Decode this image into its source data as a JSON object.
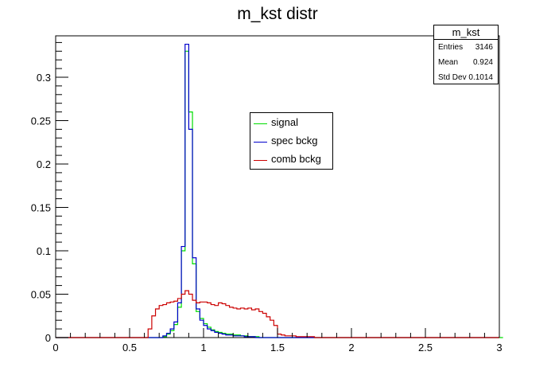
{
  "title": "m_kst distr",
  "stats": {
    "name": "m_kst",
    "rows": [
      {
        "label": "Entries",
        "value": "3146"
      },
      {
        "label": "Mean",
        "value": "0.924"
      },
      {
        "label": "Std Dev",
        "value": "0.1014"
      }
    ]
  },
  "legend": [
    {
      "label": "signal",
      "color": "#00dd00"
    },
    {
      "label": "spec bckg",
      "color": "#0000cc"
    },
    {
      "label": "comb bckg",
      "color": "#cc0000"
    }
  ],
  "chart_data": {
    "type": "histogram",
    "title": "m_kst distr",
    "xlim": [
      0,
      3
    ],
    "ylim": [
      0,
      0.34
    ],
    "x_ticks": [
      "0",
      "0.5",
      "1",
      "1.5",
      "2",
      "2.5",
      "3"
    ],
    "y_ticks": [
      "0",
      "0.05",
      "0.1",
      "0.15",
      "0.2",
      "0.25",
      "0.3"
    ],
    "bin_edges_start": 0,
    "bin_width": 0.025,
    "grid": false,
    "legend_position": "center",
    "series": [
      {
        "name": "signal",
        "color": "#00dd00",
        "values": [
          0,
          0,
          0,
          0,
          0,
          0,
          0,
          0,
          0,
          0,
          0,
          0,
          0,
          0,
          0,
          0,
          0,
          0,
          0,
          0,
          0,
          0,
          0,
          0,
          0,
          0,
          0,
          0,
          0,
          0.001,
          0.004,
          0.008,
          0.015,
          0.035,
          0.1,
          0.33,
          0.26,
          0.085,
          0.03,
          0.022,
          0.016,
          0.012,
          0.009,
          0.007,
          0.006,
          0.005,
          0.004,
          0.004,
          0.003,
          0.003,
          0.002,
          0.002,
          0.001,
          0.001,
          0.001,
          0,
          0,
          0,
          0,
          0,
          0,
          0,
          0,
          0,
          0,
          0,
          0,
          0,
          0,
          0,
          0,
          0,
          0,
          0,
          0,
          0,
          0,
          0,
          0,
          0,
          0,
          0,
          0,
          0,
          0,
          0,
          0,
          0,
          0,
          0,
          0,
          0,
          0,
          0,
          0,
          0,
          0,
          0,
          0,
          0,
          0,
          0,
          0,
          0,
          0,
          0,
          0,
          0,
          0,
          0,
          0,
          0,
          0,
          0,
          0,
          0,
          0,
          0,
          0,
          0,
          0
        ]
      },
      {
        "name": "spec bckg",
        "color": "#0000cc",
        "values": [
          0,
          0,
          0,
          0,
          0,
          0,
          0,
          0,
          0,
          0,
          0,
          0,
          0,
          0,
          0,
          0,
          0,
          0,
          0,
          0,
          0,
          0,
          0,
          0,
          0,
          0,
          0,
          0,
          0,
          0.002,
          0.005,
          0.01,
          0.018,
          0.04,
          0.105,
          0.338,
          0.24,
          0.092,
          0.033,
          0.02,
          0.014,
          0.01,
          0.008,
          0.006,
          0.005,
          0.004,
          0.003,
          0.003,
          0.002,
          0.002,
          0.002,
          0.001,
          0.001,
          0.001,
          0,
          0,
          0,
          0,
          0,
          0,
          0,
          0,
          0,
          0,
          0,
          0,
          0,
          0,
          0,
          0,
          0,
          0,
          0,
          0,
          0,
          0,
          0,
          0,
          0,
          0,
          0,
          0,
          0,
          0,
          0,
          0,
          0,
          0,
          0,
          0,
          0,
          0,
          0,
          0,
          0,
          0,
          0,
          0,
          0,
          0,
          0,
          0,
          0,
          0,
          0,
          0,
          0,
          0,
          0,
          0,
          0,
          0,
          0,
          0,
          0,
          0,
          0,
          0,
          0,
          0
        ]
      },
      {
        "name": "comb bckg",
        "color": "#cc0000",
        "values": [
          0,
          0,
          0,
          0,
          0,
          0,
          0,
          0,
          0,
          0,
          0,
          0,
          0,
          0,
          0,
          0,
          0,
          0,
          0,
          0,
          0,
          0,
          0,
          0,
          0,
          0.01,
          0.025,
          0.033,
          0.037,
          0.038,
          0.04,
          0.041,
          0.042,
          0.045,
          0.05,
          0.054,
          0.05,
          0.043,
          0.04,
          0.041,
          0.041,
          0.04,
          0.038,
          0.037,
          0.04,
          0.039,
          0.037,
          0.035,
          0.034,
          0.033,
          0.034,
          0.033,
          0.034,
          0.032,
          0.033,
          0.03,
          0.028,
          0.024,
          0.02,
          0.014,
          0.004,
          0.003,
          0.002,
          0.002,
          0.002,
          0.001,
          0.001,
          0.001,
          0.001,
          0.001,
          0,
          0,
          0,
          0,
          0,
          0,
          0,
          0,
          0,
          0,
          0,
          0,
          0,
          0,
          0,
          0,
          0,
          0,
          0,
          0,
          0,
          0,
          0,
          0,
          0,
          0,
          0,
          0,
          0,
          0,
          0,
          0,
          0,
          0,
          0,
          0,
          0,
          0,
          0,
          0,
          0,
          0,
          0,
          0,
          0,
          0,
          0,
          0,
          0,
          0
        ]
      }
    ]
  }
}
